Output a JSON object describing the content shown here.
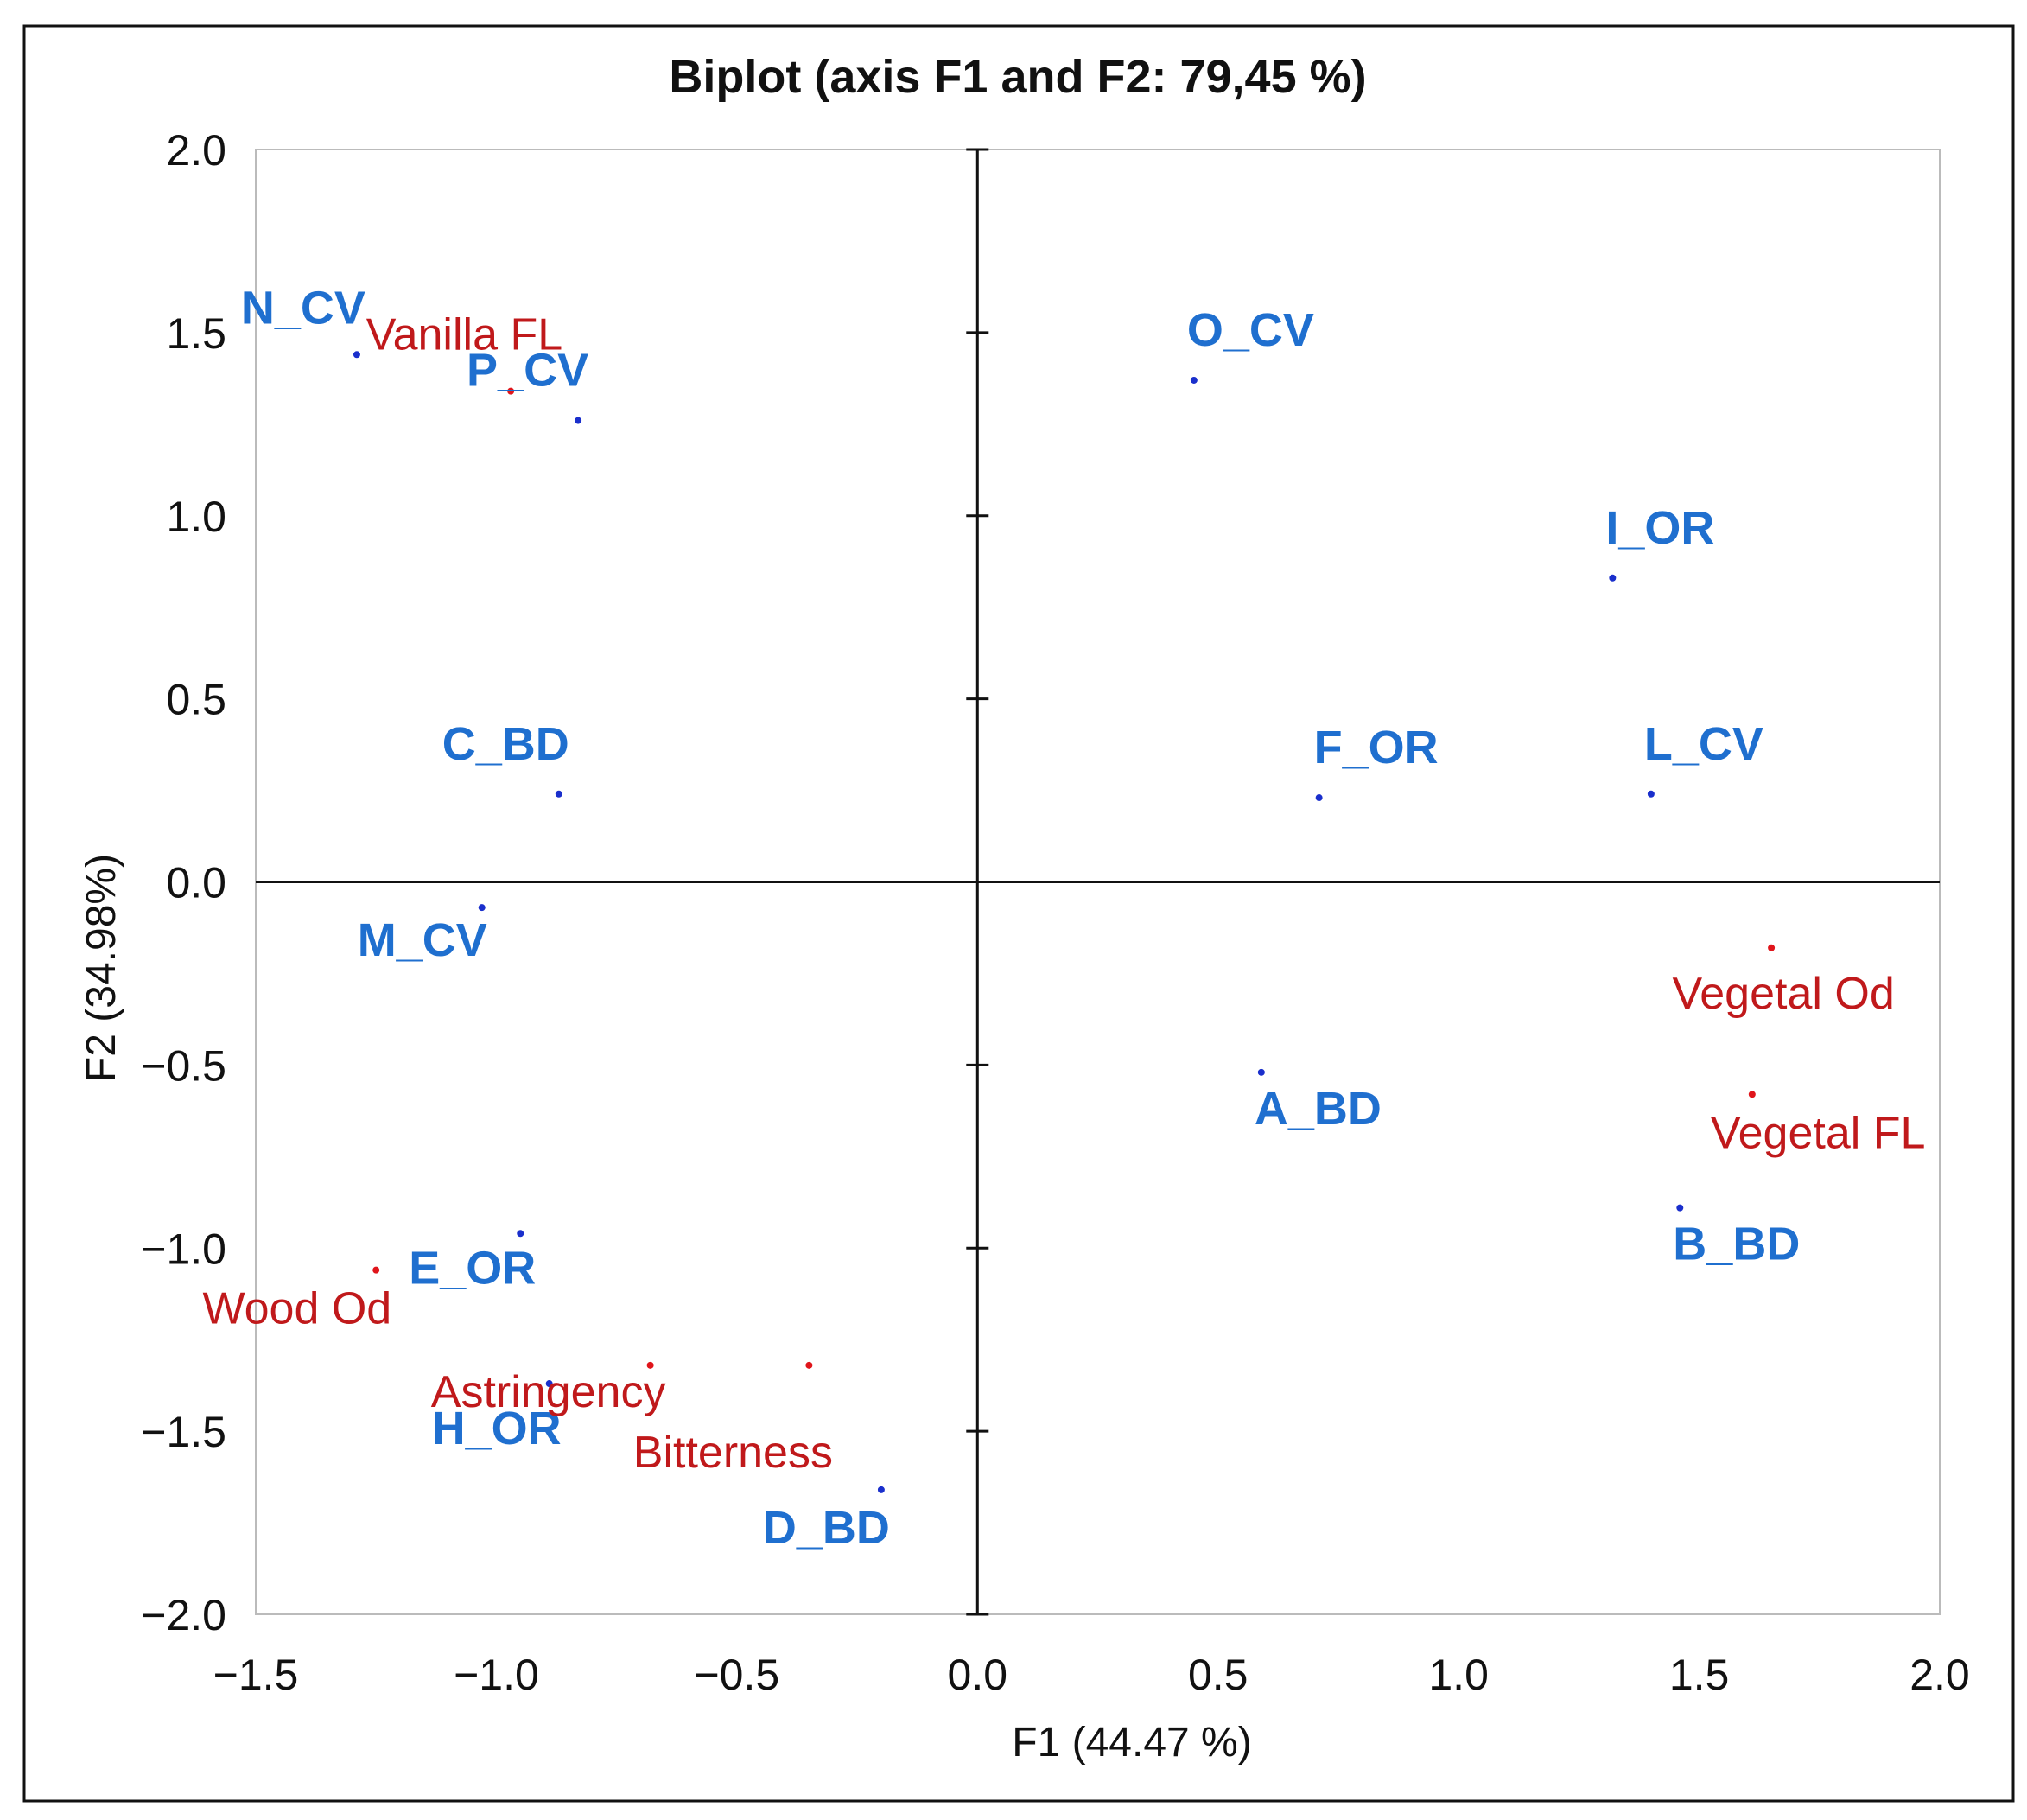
{
  "chart_data": {
    "type": "scatter",
    "title": "Biplot (axis F1 and F2: 79,45 %)",
    "xlabel": "F1 (44.47 %)",
    "ylabel": "F2 (34.98%)",
    "xlim": [
      -1.5,
      2.0
    ],
    "ylim": [
      -2.0,
      2.0
    ],
    "x_ticks": [
      {
        "value": -1.5,
        "label": "−1.5"
      },
      {
        "value": -1.0,
        "label": "−1.0"
      },
      {
        "value": -0.5,
        "label": "−0.5"
      },
      {
        "value": 0.0,
        "label": "0.0"
      },
      {
        "value": 0.5,
        "label": "0.5"
      },
      {
        "value": 1.0,
        "label": "1.0"
      },
      {
        "value": 1.5,
        "label": "1.5"
      },
      {
        "value": 2.0,
        "label": "2.0"
      }
    ],
    "y_ticks": [
      {
        "value": 2.0,
        "label": "2.0"
      },
      {
        "value": 1.5,
        "label": "1.5"
      },
      {
        "value": 1.0,
        "label": "1.0"
      },
      {
        "value": 0.5,
        "label": "0.5"
      },
      {
        "value": 0.0,
        "label": "0.0"
      },
      {
        "value": -0.5,
        "label": "−0.5"
      },
      {
        "value": -1.0,
        "label": "−1.0"
      },
      {
        "value": -1.5,
        "label": "−1.5"
      },
      {
        "value": -2.0,
        "label": "−2.0"
      }
    ],
    "grid": false,
    "colors": {
      "observations": "#1f6fcf",
      "observation_points": "#1a2fcc",
      "variables": "#c0191b",
      "variable_points": "#e0151b",
      "axis": "#111111",
      "frame": "#bbbbbb"
    },
    "series": [
      {
        "name": "Observations",
        "points": [
          {
            "label": "N_CV",
            "x": -1.29,
            "y": 1.44,
            "anchor": "end"
          },
          {
            "label": "P_CV",
            "x": -0.83,
            "y": 1.26,
            "anchor": "end"
          },
          {
            "label": "O_CV",
            "x": 0.45,
            "y": 1.37,
            "anchor": "start"
          },
          {
            "label": "I_OR",
            "x": 1.32,
            "y": 0.83,
            "anchor": "start"
          },
          {
            "label": "C_BD",
            "x": -0.87,
            "y": 0.24,
            "anchor": "end"
          },
          {
            "label": "F_OR",
            "x": 0.71,
            "y": 0.23,
            "anchor": "start"
          },
          {
            "label": "L_CV",
            "x": 1.4,
            "y": 0.24,
            "anchor": "start"
          },
          {
            "label": "M_CV",
            "x": -1.03,
            "y": -0.07,
            "anchor": "end"
          },
          {
            "label": "A_BD",
            "x": 0.59,
            "y": -0.52,
            "anchor": "start"
          },
          {
            "label": "B_BD",
            "x": 1.46,
            "y": -0.89,
            "anchor": "start"
          },
          {
            "label": "E_OR",
            "x": -0.95,
            "y": -0.96,
            "anchor": "end"
          },
          {
            "label": "H_OR",
            "x": -0.89,
            "y": -1.37,
            "anchor": "end"
          },
          {
            "label": "D_BD",
            "x": -0.2,
            "y": -1.66,
            "anchor": "end"
          }
        ]
      },
      {
        "name": "Variables",
        "points": [
          {
            "label": "Vanilla FL",
            "x": -0.97,
            "y": 1.34,
            "anchor": "end"
          },
          {
            "label": "Vegetal Od",
            "x": 1.65,
            "y": -0.18,
            "anchor": "middle"
          },
          {
            "label": "Vegetal FL",
            "x": 1.61,
            "y": -0.58,
            "anchor": "start"
          },
          {
            "label": "Wood Od",
            "x": -1.25,
            "y": -1.06,
            "anchor": "end"
          },
          {
            "label": "Astringency",
            "x": -0.68,
            "y": -1.32,
            "anchor": "middle"
          },
          {
            "label": "Bitterness",
            "x": -0.35,
            "y": -1.32,
            "anchor": "middle"
          }
        ]
      }
    ]
  }
}
